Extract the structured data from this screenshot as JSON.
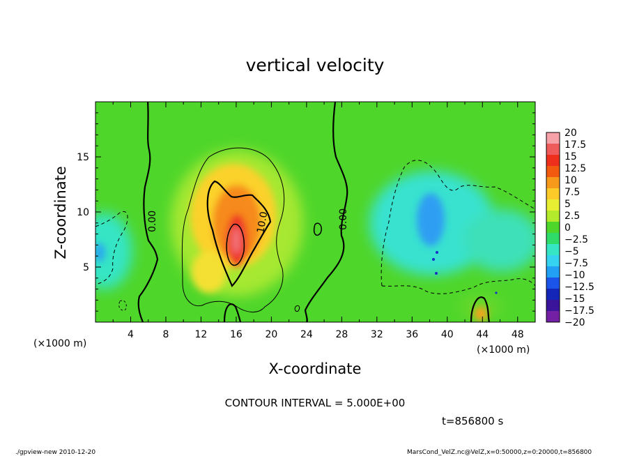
{
  "chart_data": {
    "type": "heatmap",
    "title": "vertical velocity",
    "xlabel": "X-coordinate",
    "ylabel": "Z-coordinate",
    "x_unit": "(×1000 m)",
    "y_unit": "(×1000 m)",
    "xlim": [
      0,
      50
    ],
    "ylim": [
      0,
      20
    ],
    "x_ticks": [
      "4",
      "8",
      "12",
      "16",
      "20",
      "24",
      "28",
      "32",
      "36",
      "40",
      "44",
      "48"
    ],
    "y_ticks": [
      "5",
      "10",
      "15"
    ],
    "colorbar": {
      "levels": [
        "20",
        "17.5",
        "15",
        "12.5",
        "10",
        "7.5",
        "5",
        "2.5",
        "0",
        "−2.5",
        "−5",
        "−7.5",
        "−10",
        "−12.5",
        "−15",
        "−17.5",
        "−20"
      ],
      "colors": [
        "#f7a1a8",
        "#ef5a5a",
        "#ee2f1c",
        "#f25a0f",
        "#f7991b",
        "#fccb2a",
        "#e8ef32",
        "#b3ea2b",
        "#4fd62b",
        "#2fdc6a",
        "#35e5c4",
        "#36d3f0",
        "#22a0f4",
        "#1b54e8",
        "#1426b8",
        "#3a149a",
        "#7420a5"
      ]
    },
    "contour_labels": [
      "0.00",
      "10.0",
      "0.00"
    ],
    "contour_interval_text": "CONTOUR INTERVAL = 5.000E+00",
    "time_text": "t=856800  s",
    "background_color": "#4fd62b"
  },
  "footer": {
    "left": "./gpview-new   2010-12-20",
    "right": "MarsCond_VelZ.nc@VelZ,x=0:50000,z=0:20000,t=856800"
  }
}
